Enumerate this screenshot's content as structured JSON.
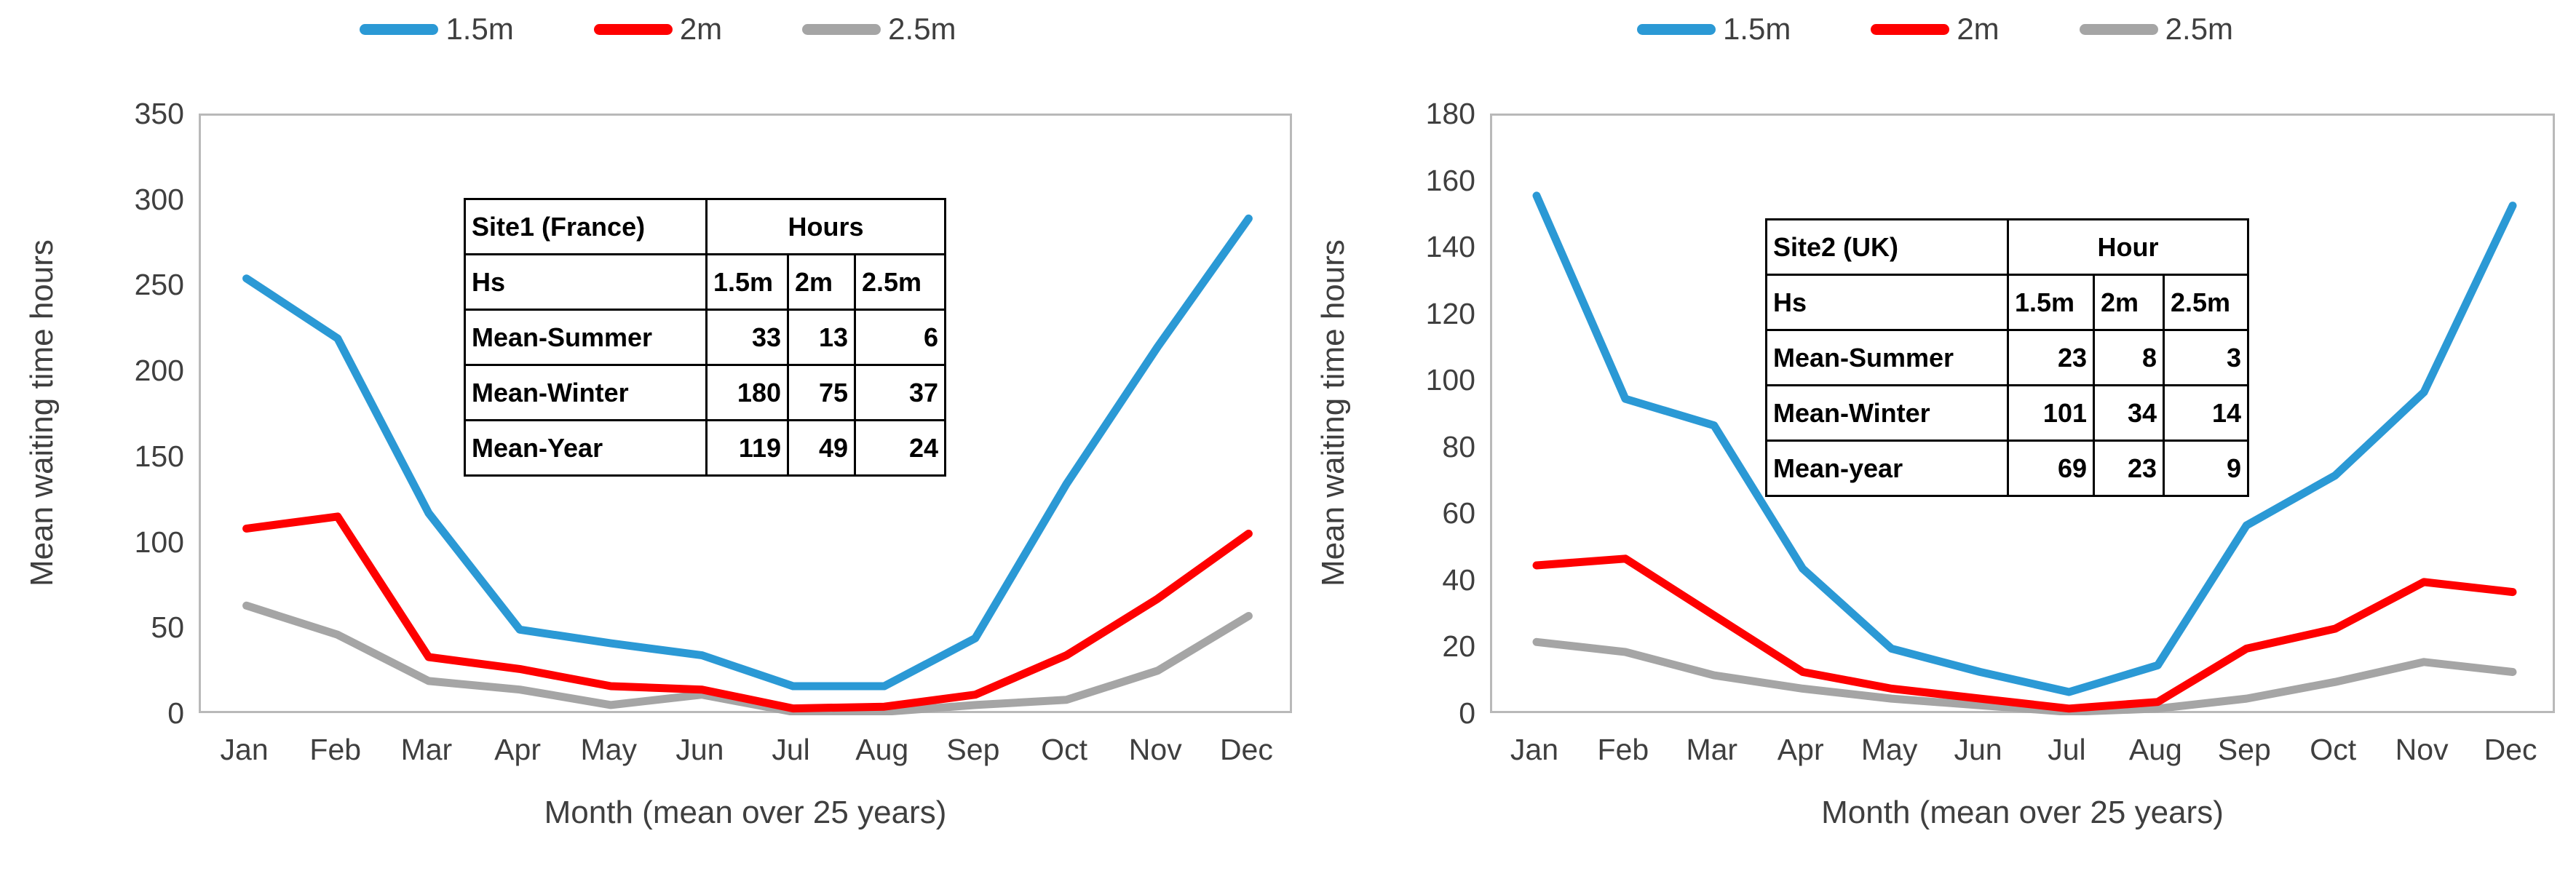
{
  "figure": {
    "background": "#ffffff",
    "text_color": "#3f3f3f",
    "table_border_color": "#000000"
  },
  "chart_data": [
    {
      "type": "line",
      "title": "",
      "xlabel": "Month (mean over 25 years)",
      "ylabel": "Mean waiting time hours",
      "x": [
        "Jan",
        "Feb",
        "Mar",
        "Apr",
        "May",
        "Jun",
        "Jul",
        "Aug",
        "Sep",
        "Oct",
        "Nov",
        "Dec"
      ],
      "ylim": [
        0,
        350
      ],
      "ytick_step": 50,
      "yticks": [
        350,
        300,
        250,
        200,
        150,
        100,
        50,
        0
      ],
      "grid": false,
      "legend_position": "top",
      "series": [
        {
          "name": "1.5m",
          "color": "#2b99d5",
          "values": [
            255,
            220,
            118,
            50,
            42,
            35,
            17,
            17,
            45,
            135,
            215,
            290
          ]
        },
        {
          "name": "2m",
          "color": "#fe0000",
          "values": [
            109,
            116,
            34,
            27,
            17,
            15,
            4,
            5,
            12,
            35,
            68,
            106
          ]
        },
        {
          "name": "2.5m",
          "color": "#a5a5a5",
          "values": [
            64,
            47,
            20,
            15,
            6,
            12,
            2,
            2,
            6,
            9,
            26,
            58
          ]
        }
      ],
      "inset_table": {
        "header_left": "Site1 (France)",
        "header_right": "Hours",
        "row2_left": "Hs",
        "columns": [
          "1.5m",
          "2m",
          "2.5m"
        ],
        "rows": [
          {
            "label": "Mean-Summer",
            "values": [
              "33",
              "13",
              "6"
            ]
          },
          {
            "label": "Mean-Winter",
            "values": [
              "180",
              "75",
              "37"
            ]
          },
          {
            "label": "Mean-Year",
            "values": [
              "119",
              "49",
              "24"
            ]
          }
        ]
      }
    },
    {
      "type": "line",
      "title": "",
      "xlabel": "Month (mean over 25 years)",
      "ylabel": "Mean waiting time hours",
      "x": [
        "Jan",
        "Feb",
        "Mar",
        "Apr",
        "May",
        "Jun",
        "Jul",
        "Aug",
        "Sep",
        "Oct",
        "Nov",
        "Dec"
      ],
      "ylim": [
        0,
        180
      ],
      "ytick_step": 20,
      "yticks": [
        180,
        160,
        140,
        120,
        100,
        80,
        60,
        40,
        20,
        0
      ],
      "grid": false,
      "legend_position": "top",
      "series": [
        {
          "name": "1.5m",
          "color": "#2b99d5",
          "values": [
            156,
            95,
            87,
            44,
            20,
            13,
            7,
            15,
            57,
            72,
            97,
            153
          ]
        },
        {
          "name": "2m",
          "color": "#fe0000",
          "values": [
            45,
            47,
            30,
            13,
            8,
            5,
            2,
            4,
            20,
            26,
            40,
            37
          ]
        },
        {
          "name": "2.5m",
          "color": "#a5a5a5",
          "values": [
            22,
            19,
            12,
            8,
            5,
            3,
            1,
            2,
            5,
            10,
            16,
            13
          ]
        }
      ],
      "inset_table": {
        "header_left": "Site2 (UK)",
        "header_right": "Hour",
        "row2_left": "Hs",
        "columns": [
          "1.5m",
          "2m",
          "2.5m"
        ],
        "rows": [
          {
            "label": "Mean-Summer",
            "values": [
              "23",
              "8",
              "3"
            ]
          },
          {
            "label": "Mean-Winter",
            "values": [
              "101",
              "34",
              "14"
            ]
          },
          {
            "label": "Mean-year",
            "values": [
              "69",
              "23",
              "9"
            ]
          }
        ]
      }
    }
  ]
}
